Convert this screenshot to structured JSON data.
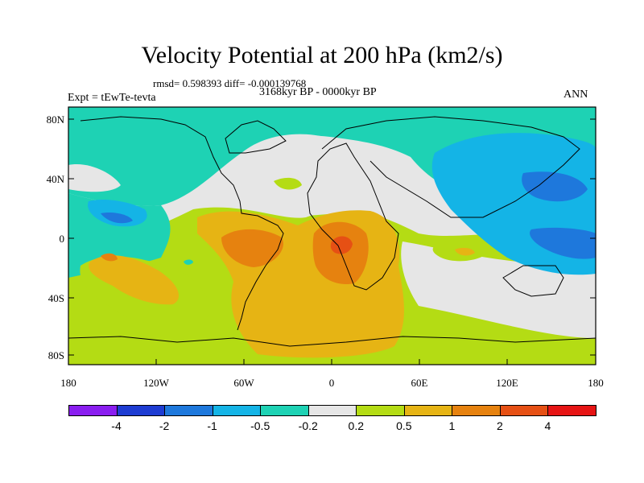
{
  "header": {
    "title": "Velocity Potential at 200 hPa (km2/s)",
    "stats": "rmsd= 0.598393  diff= -0.000139768",
    "period": "3168kyr BP - 0000kyr BP",
    "expt": "Expt = tEwTe-tevta",
    "season": "ANN"
  },
  "axes": {
    "lat_labels": [
      "80N",
      "40N",
      "0",
      "40S",
      "80S"
    ],
    "lon_labels": [
      "180",
      "120W",
      "60W",
      "0",
      "60E",
      "120E",
      "180"
    ]
  },
  "colorbar": {
    "colors": [
      "#8a1ef0",
      "#1e3cd2",
      "#1e78dc",
      "#14b4e6",
      "#1ed2b4",
      "#e6e6e6",
      "#b4dc14",
      "#e6b414",
      "#e6820f",
      "#e65014",
      "#e61414"
    ],
    "labels": [
      "-4",
      "-2",
      "-1",
      "-0.5",
      "-0.2",
      "0.2",
      "0.5",
      "1",
      "2",
      "4"
    ]
  }
}
